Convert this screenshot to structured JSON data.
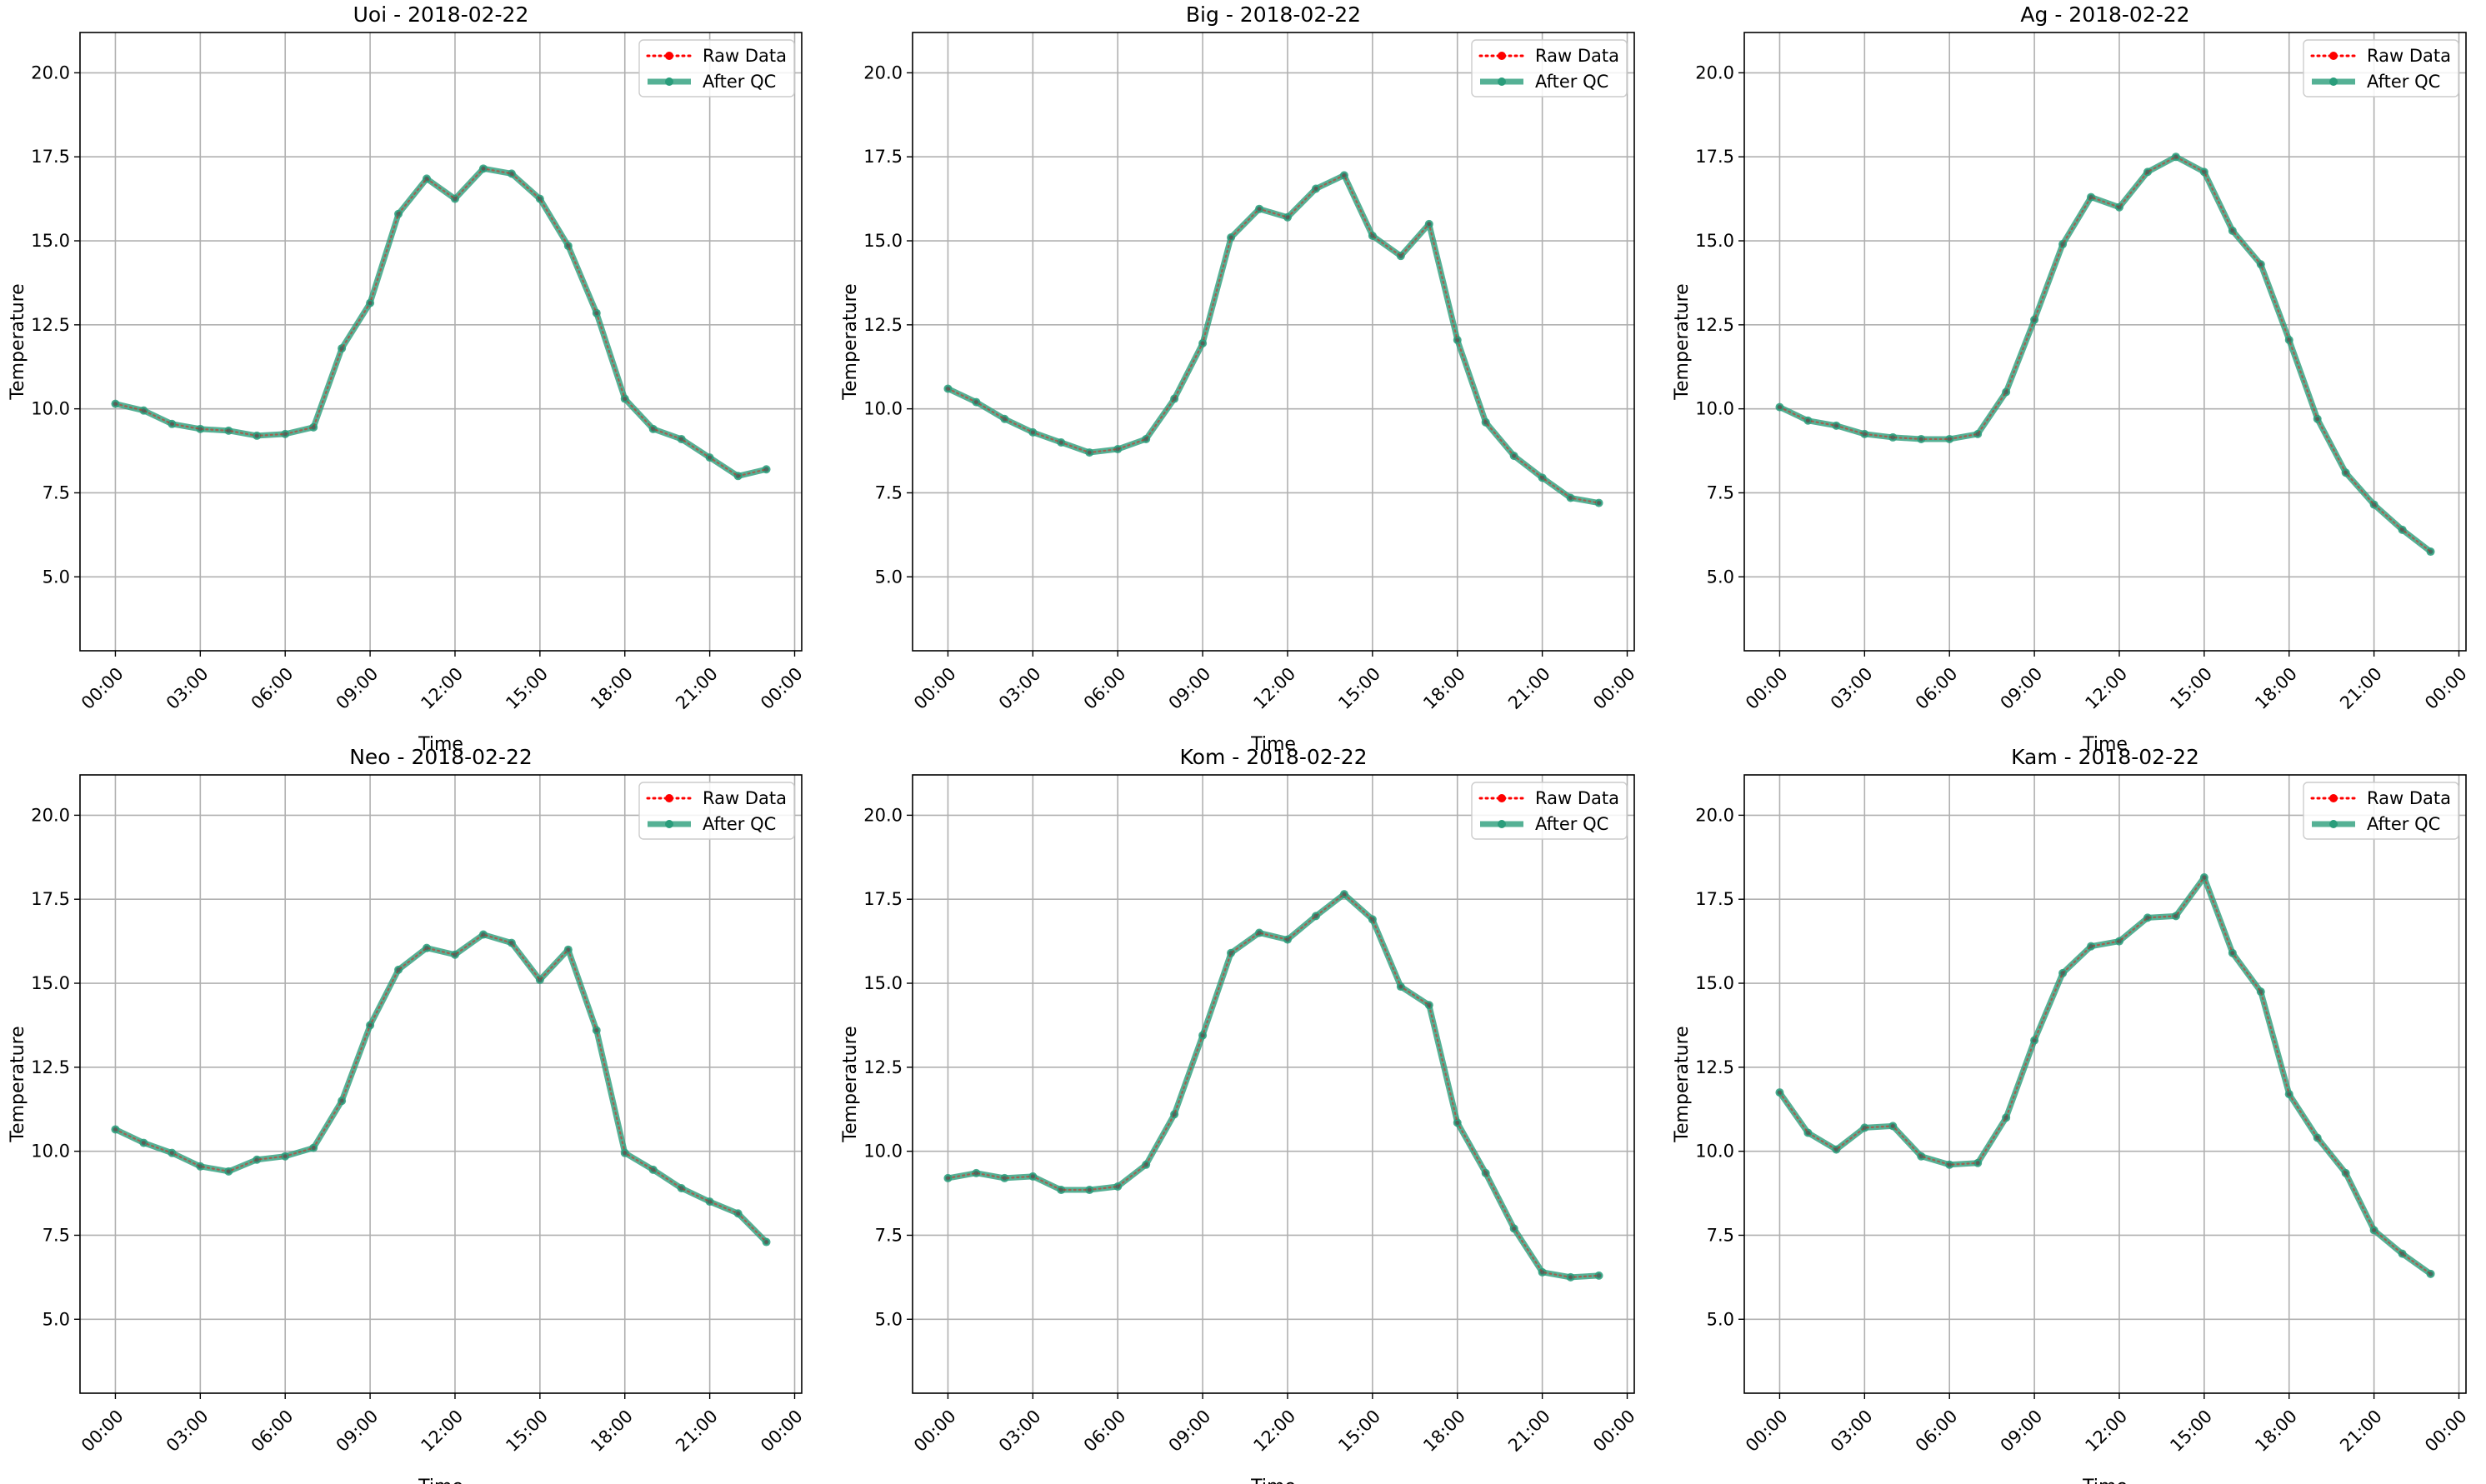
{
  "chart_data": [
    {
      "type": "line",
      "title": "Uoi - 2018-02-22",
      "xlabel": "Time",
      "ylabel": "Temperature",
      "xtick_labels": [
        "00:00",
        "03:00",
        "06:00",
        "09:00",
        "12:00",
        "15:00",
        "18:00",
        "21:00",
        "00:00"
      ],
      "yticks": [
        "5.0",
        "7.5",
        "10.0",
        "12.5",
        "15.0",
        "17.5",
        "20.0"
      ],
      "ylim": [
        2.8,
        21.2
      ],
      "grid": true,
      "legend_position": "top-right",
      "hours": [
        0,
        1,
        2,
        3,
        4,
        5,
        6,
        7,
        8,
        9,
        10,
        11,
        12,
        13,
        14,
        15,
        16,
        17,
        18,
        19,
        20,
        21,
        22,
        23
      ],
      "series": [
        {
          "name": "Raw Data",
          "color": "#ff0000",
          "values": [
            10.15,
            9.95,
            9.55,
            9.4,
            9.35,
            9.2,
            9.25,
            9.45,
            11.8,
            13.15,
            15.8,
            16.85,
            16.25,
            17.15,
            17.0,
            16.25,
            14.85,
            12.85,
            10.3,
            9.4,
            9.1,
            8.55,
            8.0,
            8.2
          ]
        },
        {
          "name": "After QC",
          "color": "#2a9d7b",
          "values": [
            10.15,
            9.95,
            9.55,
            9.4,
            9.35,
            9.2,
            9.25,
            9.45,
            11.8,
            13.15,
            15.8,
            16.85,
            16.25,
            17.15,
            17.0,
            16.25,
            14.85,
            12.85,
            10.3,
            9.4,
            9.1,
            8.55,
            8.0,
            8.2
          ]
        }
      ]
    },
    {
      "type": "line",
      "title": "Big - 2018-02-22",
      "xlabel": "Time",
      "ylabel": "Temperature",
      "xtick_labels": [
        "00:00",
        "03:00",
        "06:00",
        "09:00",
        "12:00",
        "15:00",
        "18:00",
        "21:00",
        "00:00"
      ],
      "yticks": [
        "5.0",
        "7.5",
        "10.0",
        "12.5",
        "15.0",
        "17.5",
        "20.0"
      ],
      "ylim": [
        2.8,
        21.2
      ],
      "grid": true,
      "legend_position": "top-right",
      "hours": [
        0,
        1,
        2,
        3,
        4,
        5,
        6,
        7,
        8,
        9,
        10,
        11,
        12,
        13,
        14,
        15,
        16,
        17,
        18,
        19,
        20,
        21,
        22,
        23
      ],
      "series": [
        {
          "name": "Raw Data",
          "color": "#ff0000",
          "values": [
            10.6,
            10.2,
            9.7,
            9.3,
            9.0,
            8.7,
            8.8,
            9.1,
            10.3,
            11.95,
            15.1,
            15.95,
            15.7,
            16.55,
            16.95,
            15.15,
            14.55,
            15.5,
            12.05,
            9.6,
            8.6,
            7.95,
            7.35,
            7.2
          ]
        },
        {
          "name": "After QC",
          "color": "#2a9d7b",
          "values": [
            10.6,
            10.2,
            9.7,
            9.3,
            9.0,
            8.7,
            8.8,
            9.1,
            10.3,
            11.95,
            15.1,
            15.95,
            15.7,
            16.55,
            16.95,
            15.15,
            14.55,
            15.5,
            12.05,
            9.6,
            8.6,
            7.95,
            7.35,
            7.2
          ]
        }
      ]
    },
    {
      "type": "line",
      "title": "Ag - 2018-02-22",
      "xlabel": "Time",
      "ylabel": "Temperature",
      "xtick_labels": [
        "00:00",
        "03:00",
        "06:00",
        "09:00",
        "12:00",
        "15:00",
        "18:00",
        "21:00",
        "00:00"
      ],
      "yticks": [
        "5.0",
        "7.5",
        "10.0",
        "12.5",
        "15.0",
        "17.5",
        "20.0"
      ],
      "ylim": [
        2.8,
        21.2
      ],
      "grid": true,
      "legend_position": "top-right",
      "hours": [
        0,
        1,
        2,
        3,
        4,
        5,
        6,
        7,
        8,
        9,
        10,
        11,
        12,
        13,
        14,
        15,
        16,
        17,
        18,
        19,
        20,
        21,
        22,
        23
      ],
      "series": [
        {
          "name": "Raw Data",
          "color": "#ff0000",
          "values": [
            10.05,
            9.65,
            9.5,
            9.25,
            9.15,
            9.1,
            9.1,
            9.25,
            10.5,
            12.65,
            14.9,
            16.3,
            16.0,
            17.05,
            17.5,
            17.05,
            15.3,
            14.3,
            12.05,
            9.7,
            8.1,
            7.15,
            6.4,
            5.75
          ]
        },
        {
          "name": "After QC",
          "color": "#2a9d7b",
          "values": [
            10.05,
            9.65,
            9.5,
            9.25,
            9.15,
            9.1,
            9.1,
            9.25,
            10.5,
            12.65,
            14.9,
            16.3,
            16.0,
            17.05,
            17.5,
            17.05,
            15.3,
            14.3,
            12.05,
            9.7,
            8.1,
            7.15,
            6.4,
            5.75
          ]
        }
      ]
    },
    {
      "type": "line",
      "title": "Neo - 2018-02-22",
      "xlabel": "Time",
      "ylabel": "Temperature",
      "xtick_labels": [
        "00:00",
        "03:00",
        "06:00",
        "09:00",
        "12:00",
        "15:00",
        "18:00",
        "21:00",
        "00:00"
      ],
      "yticks": [
        "5.0",
        "7.5",
        "10.0",
        "12.5",
        "15.0",
        "17.5",
        "20.0"
      ],
      "ylim": [
        2.8,
        21.2
      ],
      "grid": true,
      "legend_position": "top-right",
      "hours": [
        0,
        1,
        2,
        3,
        4,
        5,
        6,
        7,
        8,
        9,
        10,
        11,
        12,
        13,
        14,
        15,
        16,
        17,
        18,
        19,
        20,
        21,
        22,
        23
      ],
      "series": [
        {
          "name": "Raw Data",
          "color": "#ff0000",
          "values": [
            10.65,
            10.25,
            9.95,
            9.55,
            9.4,
            9.75,
            9.85,
            10.1,
            11.5,
            13.75,
            15.4,
            16.05,
            15.85,
            16.45,
            16.2,
            15.1,
            16.0,
            13.6,
            9.95,
            9.45,
            8.9,
            8.5,
            8.15,
            7.3
          ]
        },
        {
          "name": "After QC",
          "color": "#2a9d7b",
          "values": [
            10.65,
            10.25,
            9.95,
            9.55,
            9.4,
            9.75,
            9.85,
            10.1,
            11.5,
            13.75,
            15.4,
            16.05,
            15.85,
            16.45,
            16.2,
            15.1,
            16.0,
            13.6,
            9.95,
            9.45,
            8.9,
            8.5,
            8.15,
            7.3
          ]
        }
      ]
    },
    {
      "type": "line",
      "title": "Kom - 2018-02-22",
      "xlabel": "Time",
      "ylabel": "Temperature",
      "xtick_labels": [
        "00:00",
        "03:00",
        "06:00",
        "09:00",
        "12:00",
        "15:00",
        "18:00",
        "21:00",
        "00:00"
      ],
      "yticks": [
        "5.0",
        "7.5",
        "10.0",
        "12.5",
        "15.0",
        "17.5",
        "20.0"
      ],
      "ylim": [
        2.8,
        21.2
      ],
      "grid": true,
      "legend_position": "top-right",
      "hours": [
        0,
        1,
        2,
        3,
        4,
        5,
        6,
        7,
        8,
        9,
        10,
        11,
        12,
        13,
        14,
        15,
        16,
        17,
        18,
        19,
        20,
        21,
        22,
        23
      ],
      "series": [
        {
          "name": "Raw Data",
          "color": "#ff0000",
          "values": [
            9.2,
            9.35,
            9.2,
            9.25,
            8.85,
            8.85,
            8.95,
            9.6,
            11.1,
            13.45,
            15.9,
            16.5,
            16.3,
            17.0,
            17.65,
            16.9,
            14.9,
            14.35,
            10.85,
            9.35,
            7.7,
            6.4,
            6.25,
            6.3
          ]
        },
        {
          "name": "After QC",
          "color": "#2a9d7b",
          "values": [
            9.2,
            9.35,
            9.2,
            9.25,
            8.85,
            8.85,
            8.95,
            9.6,
            11.1,
            13.45,
            15.9,
            16.5,
            16.3,
            17.0,
            17.65,
            16.9,
            14.9,
            14.35,
            10.85,
            9.35,
            7.7,
            6.4,
            6.25,
            6.3
          ]
        }
      ]
    },
    {
      "type": "line",
      "title": "Kam - 2018-02-22",
      "xlabel": "Time",
      "ylabel": "Temperature",
      "xtick_labels": [
        "00:00",
        "03:00",
        "06:00",
        "09:00",
        "12:00",
        "15:00",
        "18:00",
        "21:00",
        "00:00"
      ],
      "yticks": [
        "5.0",
        "7.5",
        "10.0",
        "12.5",
        "15.0",
        "17.5",
        "20.0"
      ],
      "ylim": [
        2.8,
        21.2
      ],
      "grid": true,
      "legend_position": "top-right",
      "hours": [
        0,
        1,
        2,
        3,
        4,
        5,
        6,
        7,
        8,
        9,
        10,
        11,
        12,
        13,
        14,
        15,
        16,
        17,
        18,
        19,
        20,
        21,
        22,
        23
      ],
      "series": [
        {
          "name": "Raw Data",
          "color": "#ff0000",
          "values": [
            11.75,
            10.55,
            10.05,
            10.7,
            10.75,
            9.85,
            9.6,
            9.65,
            11.0,
            13.3,
            15.3,
            16.1,
            16.25,
            16.95,
            17.0,
            18.15,
            15.9,
            14.75,
            11.7,
            10.4,
            9.35,
            7.65,
            6.95,
            6.35
          ]
        },
        {
          "name": "After QC",
          "color": "#2a9d7b",
          "values": [
            11.75,
            10.55,
            10.05,
            10.7,
            10.75,
            9.85,
            9.6,
            9.65,
            11.0,
            13.3,
            15.3,
            16.1,
            16.25,
            16.95,
            17.0,
            18.15,
            15.9,
            14.75,
            11.7,
            10.4,
            9.35,
            7.65,
            6.95,
            6.35
          ]
        }
      ]
    }
  ]
}
